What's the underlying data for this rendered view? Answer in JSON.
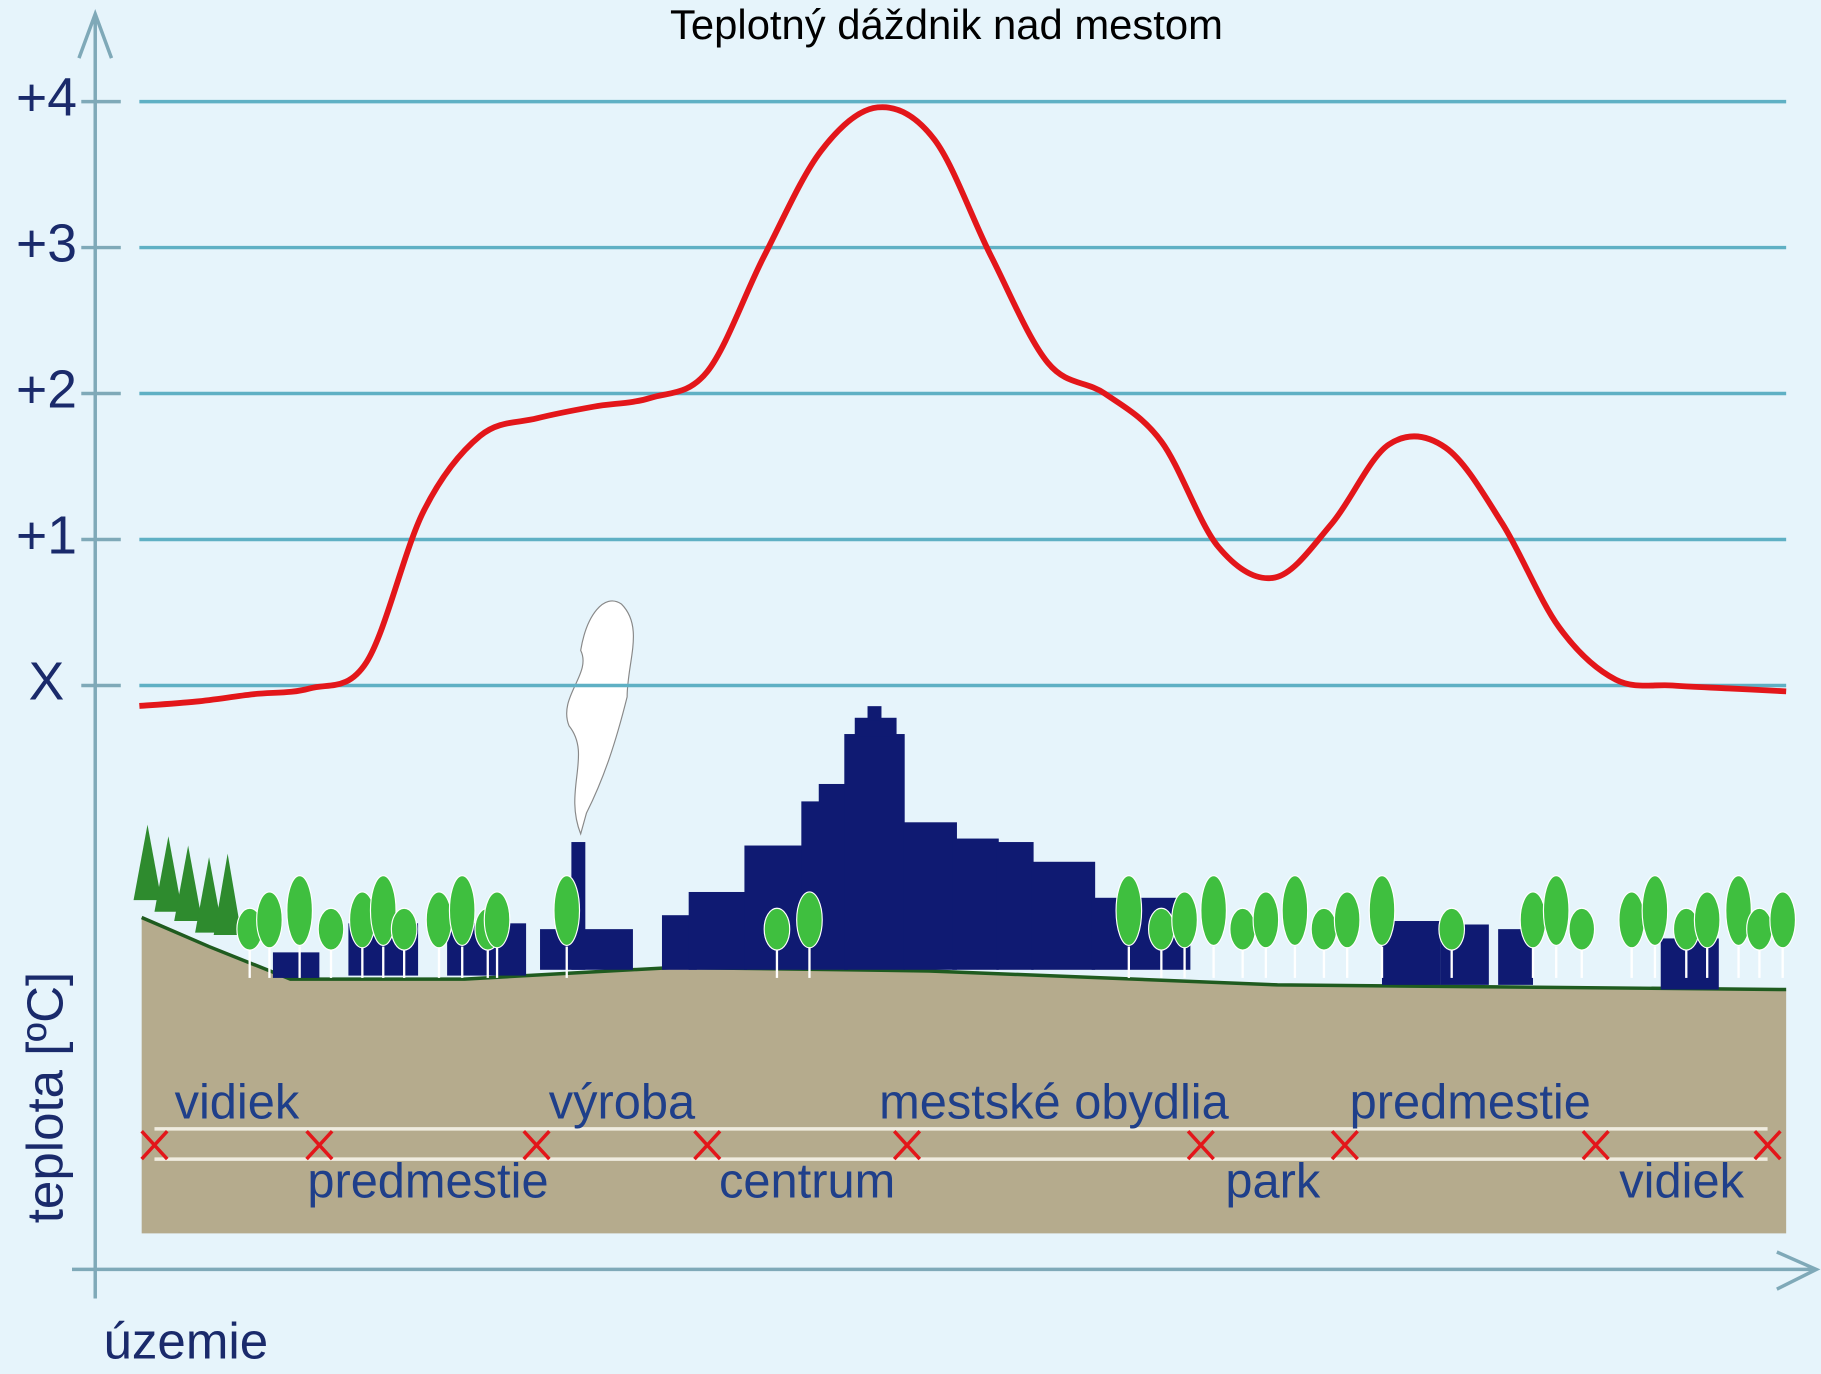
{
  "chart_data": {
    "type": "line",
    "title": "Teplotný dáždnik nad mestom",
    "y_label": "teplota [ºC]",
    "x_label": "územie",
    "ylim": [
      -4,
      4.6
    ],
    "yticks": [
      {
        "value": 0,
        "label": "X"
      },
      {
        "value": 1,
        "label": "+1"
      },
      {
        "value": 2,
        "label": "+2"
      },
      {
        "value": 3,
        "label": "+3"
      },
      {
        "value": 4,
        "label": "+4"
      }
    ],
    "grid": true,
    "categories": [
      null,
      null,
      null,
      null,
      null,
      null,
      null,
      null,
      null,
      null,
      null,
      null,
      null,
      null,
      null,
      null,
      null,
      null,
      null,
      null,
      null,
      null,
      null,
      null,
      null,
      null,
      null,
      null,
      null,
      null
    ],
    "series": [
      {
        "color": "#e3161a",
        "values": [
          -0.14,
          -0.11,
          -0.06,
          -0.02,
          0.16,
          1.19,
          1.71,
          1.83,
          1.91,
          1.97,
          2.15,
          2.94,
          3.66,
          3.96,
          3.74,
          2.94,
          2.21,
          2.0,
          1.67,
          0.95,
          0.74,
          1.11,
          1.65,
          1.63,
          1.11,
          0.4,
          0.04,
          0.0,
          -0.02,
          -0.04
        ]
      }
    ],
    "zones": [
      "vidiek",
      "predmestie",
      "výroba",
      "centrum",
      "mestské obydlia",
      "park",
      "predmestie",
      "vidiek"
    ]
  }
}
